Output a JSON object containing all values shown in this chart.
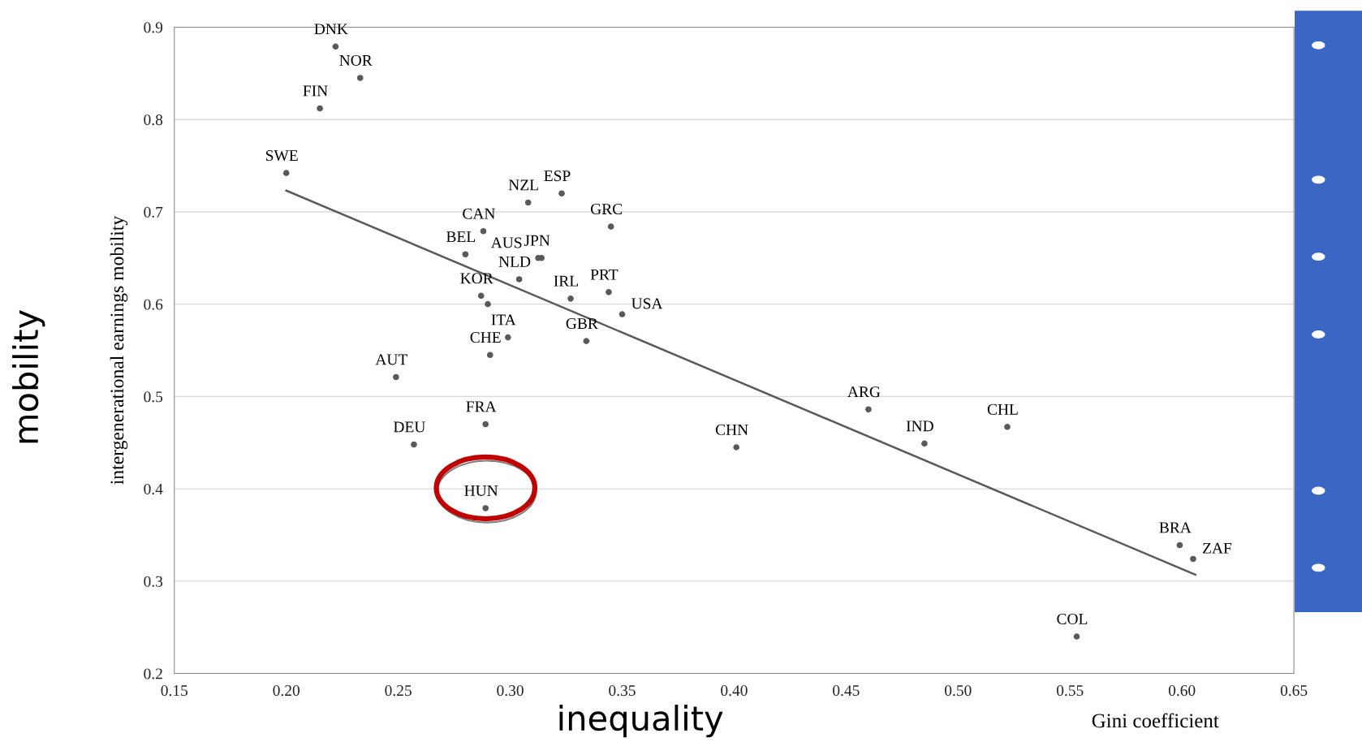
{
  "chart_data": {
    "type": "scatter",
    "ylabel": "intergenerational earnings mobility",
    "xlim": [
      0.15,
      0.65
    ],
    "xticks": [
      {
        "value": 0.15,
        "label": "0.15"
      },
      {
        "value": 0.2,
        "label": "0.20"
      },
      {
        "value": 0.25,
        "label": "0.25"
      },
      {
        "value": 0.3,
        "label": "0.30"
      },
      {
        "value": 0.35,
        "label": "0.35"
      },
      {
        "value": 0.4,
        "label": "0.40"
      },
      {
        "value": 0.45,
        "label": "0.45"
      },
      {
        "value": 0.5,
        "label": "0.50"
      },
      {
        "value": 0.55,
        "label": "0.55"
      },
      {
        "value": 0.6,
        "label": "0.60"
      },
      {
        "value": 0.65,
        "label": "0.65"
      }
    ],
    "ylim": [
      0.2,
      0.9
    ],
    "yticks": [
      {
        "value": 0.2,
        "label": "0.2"
      },
      {
        "value": 0.3,
        "label": "0.3"
      },
      {
        "value": 0.4,
        "label": "0.4"
      },
      {
        "value": 0.5,
        "label": "0.5"
      },
      {
        "value": 0.6,
        "label": "0.6"
      },
      {
        "value": 0.7,
        "label": "0.7"
      },
      {
        "value": 0.8,
        "label": "0.8"
      },
      {
        "value": 0.9,
        "label": "0.9"
      }
    ],
    "grid": "y",
    "legend": false,
    "series": [
      {
        "marker": "circle",
        "color": "#595959",
        "x": [
          0.222,
          0.233,
          0.215,
          0.2,
          0.323,
          0.308,
          0.345,
          0.288,
          0.3125,
          0.314,
          0.28,
          0.304,
          0.344,
          0.327,
          0.287,
          0.29,
          0.299,
          0.291,
          0.35,
          0.334,
          0.249,
          0.289,
          0.257,
          0.289,
          0.401,
          0.46,
          0.485,
          0.522,
          0.599,
          0.605,
          0.553
        ],
        "values": [
          0.879,
          0.845,
          0.812,
          0.742,
          0.72,
          0.71,
          0.684,
          0.679,
          0.65,
          0.65,
          0.654,
          0.627,
          0.613,
          0.606,
          0.609,
          0.6,
          0.564,
          0.545,
          0.589,
          0.56,
          0.521,
          0.47,
          0.448,
          0.379,
          0.445,
          0.486,
          0.449,
          0.467,
          0.339,
          0.324,
          0.24
        ]
      },
      {
        "type": "line",
        "color": "#595959",
        "x": [
          0.2,
          0.606
        ],
        "values": [
          0.723,
          0.307
        ]
      }
    ],
    "annotations": [
      "mobility",
      "inequality",
      "Gini coefficient",
      {
        "text": "DNK",
        "x": 0.222,
        "y": 0.879
      },
      {
        "text": "NOR",
        "x": 0.233,
        "y": 0.845
      },
      {
        "text": "FIN",
        "x": 0.215,
        "y": 0.812
      },
      {
        "text": "SWE",
        "x": 0.2,
        "y": 0.742
      },
      {
        "text": "ESP",
        "x": 0.323,
        "y": 0.72
      },
      {
        "text": "NZL",
        "x": 0.308,
        "y": 0.71
      },
      {
        "text": "GRC",
        "x": 0.345,
        "y": 0.684
      },
      {
        "text": "CAN",
        "x": 0.288,
        "y": 0.679
      },
      {
        "text": "JPN",
        "x": 0.314,
        "y": 0.65
      },
      {
        "text": "AUS",
        "x": 0.3125,
        "y": 0.65
      },
      {
        "text": "BEL",
        "x": 0.28,
        "y": 0.654
      },
      {
        "text": "NLD",
        "x": 0.304,
        "y": 0.627
      },
      {
        "text": "PRT",
        "x": 0.344,
        "y": 0.613
      },
      {
        "text": "IRL",
        "x": 0.327,
        "y": 0.606
      },
      {
        "text": "KOR",
        "x": 0.287,
        "y": 0.609
      },
      {
        "text": "ITA",
        "x": 0.299,
        "y": 0.564
      },
      {
        "text": "CHE",
        "x": 0.291,
        "y": 0.545
      },
      {
        "text": "USA",
        "x": 0.35,
        "y": 0.589
      },
      {
        "text": "GBR",
        "x": 0.334,
        "y": 0.56
      },
      {
        "text": "AUT",
        "x": 0.249,
        "y": 0.521
      },
      {
        "text": "FRA",
        "x": 0.289,
        "y": 0.47
      },
      {
        "text": "DEU",
        "x": 0.257,
        "y": 0.448
      },
      {
        "text": "HUN",
        "x": 0.289,
        "y": 0.379
      },
      {
        "text": "CHN",
        "x": 0.401,
        "y": 0.445
      },
      {
        "text": "ARG",
        "x": 0.46,
        "y": 0.486
      },
      {
        "text": "IND",
        "x": 0.485,
        "y": 0.449
      },
      {
        "text": "CHL",
        "x": 0.522,
        "y": 0.467
      },
      {
        "text": "BRA",
        "x": 0.599,
        "y": 0.339
      },
      {
        "text": "ZAF",
        "x": 0.605,
        "y": 0.324
      },
      {
        "text": "COL",
        "x": 0.553,
        "y": 0.24
      }
    ]
  }
}
